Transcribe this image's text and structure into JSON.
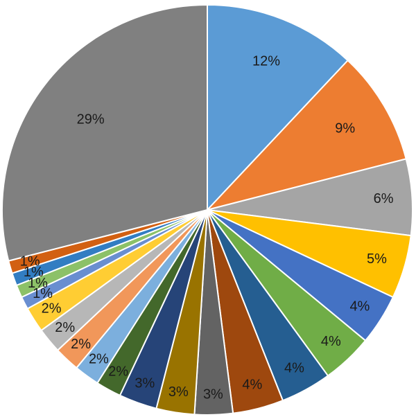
{
  "chart_data": {
    "type": "pie",
    "title": "",
    "start_angle_deg": 0,
    "direction": "clockwise",
    "legend": "none",
    "slices": [
      {
        "value": 12,
        "label": "12%",
        "color": "#5B9BD5"
      },
      {
        "value": 9,
        "label": "9%",
        "color": "#ED7D31"
      },
      {
        "value": 6,
        "label": "6%",
        "color": "#A5A5A5"
      },
      {
        "value": 5,
        "label": "5%",
        "color": "#FFC000"
      },
      {
        "value": 4,
        "label": "4%",
        "color": "#4472C4"
      },
      {
        "value": 4,
        "label": "4%",
        "color": "#70AD47"
      },
      {
        "value": 4,
        "label": "4%",
        "color": "#255E91"
      },
      {
        "value": 4,
        "label": "4%",
        "color": "#9E480E"
      },
      {
        "value": 3,
        "label": "3%",
        "color": "#636363"
      },
      {
        "value": 3,
        "label": "3%",
        "color": "#997300"
      },
      {
        "value": 3,
        "label": "3%",
        "color": "#264478"
      },
      {
        "value": 2,
        "label": "2%",
        "color": "#43682B"
      },
      {
        "value": 2,
        "label": "2%",
        "color": "#7CAFDD"
      },
      {
        "value": 2,
        "label": "2%",
        "color": "#F1975A"
      },
      {
        "value": 2,
        "label": "2%",
        "color": "#B7B7B7"
      },
      {
        "value": 2,
        "label": "2%",
        "color": "#FFCD33"
      },
      {
        "value": 1,
        "label": "1%",
        "color": "#698ED0"
      },
      {
        "value": 1,
        "label": "1%",
        "color": "#8CC168"
      },
      {
        "value": 1,
        "label": "1%",
        "color": "#327DC2"
      },
      {
        "value": 1,
        "label": "1%",
        "color": "#D26012"
      },
      {
        "value": 29,
        "label": "29%",
        "color": "#808080"
      }
    ]
  }
}
